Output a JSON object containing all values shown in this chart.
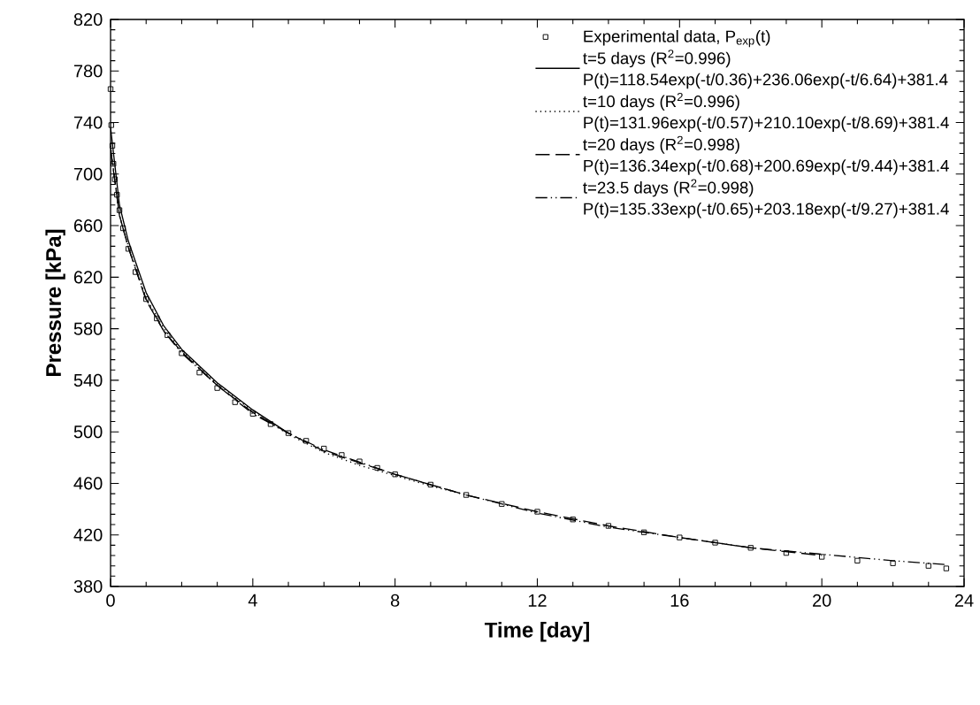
{
  "chart_data": {
    "type": "line",
    "xlabel": "Time [day]",
    "ylabel": "Pressure [kPa]",
    "xlim": [
      0,
      24
    ],
    "ylim": [
      380,
      820
    ],
    "xticks": [
      0,
      4,
      8,
      12,
      16,
      20,
      24
    ],
    "yticks": [
      380,
      420,
      460,
      500,
      540,
      580,
      620,
      660,
      700,
      740,
      780,
      820
    ],
    "grid": false,
    "legend": "top right",
    "annotations": [
      "P(t)=118.54exp(-t/0.36)+236.06exp(-t/6.64)+381.4",
      "P(t)=131.96exp(-t/0.57)+210.10exp(-t/8.69)+381.4",
      "P(t)=136.34exp(-t/0.68)+200.69exp(-t/9.44)+381.4",
      "P(t)=135.33exp(-t/0.65)+203.18exp(-t/9.27)+381.4"
    ],
    "series": [
      {
        "name": "Experimental data, P$_{exp}$(t)",
        "type": "scatter",
        "marker": "square",
        "color": "#000000",
        "x": [
          0,
          0.02,
          0.05,
          0.08,
          0.12,
          0.18,
          0.25,
          0.35,
          0.5,
          0.7,
          1,
          1.3,
          1.6,
          2,
          2.5,
          3,
          3.5,
          4,
          4.5,
          5,
          5.5,
          6,
          6.5,
          7,
          7.5,
          8,
          9,
          10,
          11,
          12,
          13,
          14,
          15,
          16,
          17,
          18,
          19,
          20,
          21,
          22,
          23,
          23.5
        ],
        "values": [
          766,
          738,
          722,
          708,
          696,
          684,
          672,
          658,
          642,
          624,
          603,
          588,
          575,
          561,
          546,
          534,
          523,
          514,
          506,
          499,
          493,
          487,
          482,
          477,
          472,
          467,
          459,
          451,
          444,
          438,
          432,
          427,
          422,
          418,
          414,
          410,
          406,
          403,
          400,
          398,
          396,
          394
        ]
      },
      {
        "name": "t=5 days (R$^{2}$=0.996)",
        "line_style": "solid",
        "color": "#000000",
        "x": [
          0,
          0.25,
          0.5,
          1,
          1.5,
          2,
          3,
          4,
          5
        ],
        "values": [
          736,
          676,
          648,
          608,
          582,
          564,
          538,
          517,
          499
        ]
      },
      {
        "name": "t=10 days (R$^{2}$=0.996)",
        "line_style": "dotted",
        "color": "#000000",
        "x": [
          0,
          0.25,
          0.5,
          1,
          1.5,
          2,
          3,
          4,
          5,
          6,
          7,
          8,
          9,
          10
        ],
        "values": [
          722,
          668,
          644,
          604,
          580,
          563,
          537,
          516,
          498,
          484,
          474,
          466,
          458,
          451
        ]
      },
      {
        "name": "t=20 days (R$^{2}$=0.998)",
        "line_style": "dashed",
        "color": "#000000",
        "x": [
          0,
          0.25,
          0.5,
          1,
          1.5,
          2,
          3,
          4,
          5,
          6,
          8,
          10,
          12,
          14,
          16,
          18,
          20
        ],
        "values": [
          719,
          668,
          643,
          602,
          578,
          562,
          536,
          515,
          499,
          485,
          467,
          451,
          438,
          427,
          418,
          410,
          404
        ]
      },
      {
        "name": "t=23.5 days (R$^{2}$=0.998)",
        "line_style": "dashdot",
        "color": "#000000",
        "x": [
          0,
          0.25,
          0.5,
          1,
          1.5,
          2,
          3,
          4,
          5,
          6,
          8,
          10,
          12,
          14,
          16,
          18,
          20,
          22,
          23.5
        ],
        "values": [
          720,
          668,
          643,
          603,
          578,
          561,
          536,
          514,
          499,
          486,
          467,
          451,
          437,
          426,
          418,
          410,
          405,
          400,
          397
        ]
      }
    ]
  }
}
